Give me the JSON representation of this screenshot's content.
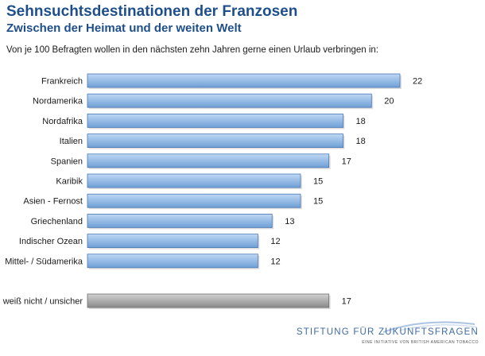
{
  "header": {
    "title": "Sehnsuchtsdestinationen der Franzosen",
    "subtitle": "Zwischen der Heimat und der weiten Welt",
    "question": "Von je 100 Befragten wollen in den nächsten zehn Jahren gerne einen Urlaub verbringen in:"
  },
  "chart_data": {
    "type": "bar",
    "orientation": "horizontal",
    "categories": [
      "Frankreich",
      "Nordamerika",
      "Nordafrika",
      "Italien",
      "Spanien",
      "Karibik",
      "Asien - Fernost",
      "Griechenland",
      "Indischer Ozean",
      "Mittel- / Südamerika",
      "weiß nicht / unsicher"
    ],
    "values": [
      22,
      20,
      18,
      18,
      17,
      15,
      15,
      13,
      12,
      12,
      17
    ],
    "highlight": [
      false,
      false,
      false,
      false,
      false,
      false,
      false,
      false,
      false,
      false,
      true
    ],
    "xlim": [
      0,
      22
    ],
    "grid": false,
    "legend": "none",
    "colors": {
      "bar_top": "#bfd8f4",
      "bar_bottom": "#6f9fd6",
      "bar_stroke": "#4a78b4",
      "gray_top": "#d2d2d2",
      "gray_bottom": "#8a8a8a",
      "gray_stroke": "#6e6e6e"
    }
  },
  "footer": {
    "logo_text": "STIFTUNG FÜR ZUKUNFTSFRAGEN",
    "logo_subtext": "EINE INITIATIVE VON BRITISH AMERICAN TOBACCO"
  }
}
